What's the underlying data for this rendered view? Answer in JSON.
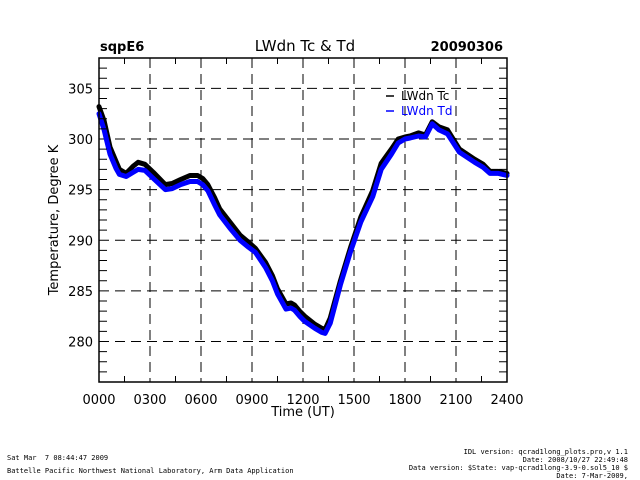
{
  "header": {
    "site": "sqpE6",
    "title": "LWdn Tc & Td",
    "date": "20090306"
  },
  "chart_data": {
    "type": "line",
    "title": "LWdn Tc & Td",
    "xlabel": "Time (UT)",
    "ylabel": "Temperature, Degree K",
    "xlim": [
      0,
      24
    ],
    "ylim": [
      276,
      308
    ],
    "x_ticks": [
      0,
      3,
      6,
      9,
      12,
      15,
      18,
      21,
      24
    ],
    "x_tick_labels": [
      "0000",
      "0300",
      "0600",
      "0900",
      "1200",
      "1500",
      "1800",
      "2100",
      "2400"
    ],
    "y_ticks": [
      280,
      285,
      290,
      295,
      300,
      305
    ],
    "y_tick_labels": [
      "280",
      "285",
      "290",
      "295",
      "300",
      "305"
    ],
    "grid": true,
    "legend_position": "top-right",
    "series": [
      {
        "name": "LWdn Tc",
        "color": "#000000",
        "x": [
          0,
          0.3,
          0.65,
          1.0,
          1.2,
          1.6,
          2.0,
          2.3,
          2.7,
          3.2,
          3.9,
          4.3,
          4.8,
          5.35,
          5.8,
          6.1,
          6.4,
          6.8,
          7.1,
          7.7,
          8.3,
          8.8,
          9.2,
          9.8,
          10.2,
          10.5,
          11.0,
          11.3,
          11.5,
          11.8,
          12.1,
          12.7,
          13.1,
          13.3,
          13.6,
          14.2,
          14.8,
          15.4,
          16.1,
          16.6,
          17.2,
          17.6,
          18.0,
          18.3,
          18.8,
          19.2,
          19.6,
          20.0,
          20.5,
          21.2,
          22.1,
          22.6,
          23.0,
          23.5,
          24.0
        ],
        "y": [
          303.2,
          301.8,
          299.2,
          297.8,
          297.0,
          296.6,
          297.3,
          297.7,
          297.5,
          296.7,
          295.5,
          295.6,
          296.0,
          296.4,
          296.4,
          296.1,
          295.5,
          294.2,
          293.1,
          291.8,
          290.5,
          289.8,
          289.2,
          287.8,
          286.5,
          285.2,
          283.7,
          283.8,
          283.6,
          283.0,
          282.5,
          281.7,
          281.3,
          281.2,
          282.3,
          286.0,
          289.3,
          292.3,
          294.9,
          297.6,
          299.0,
          300.0,
          300.2,
          300.3,
          300.6,
          300.4,
          301.7,
          301.2,
          300.9,
          299.0,
          298.0,
          297.5,
          296.8,
          296.8,
          296.6
        ]
      },
      {
        "name": "LWdn Td",
        "color": "#0000ff",
        "x": [
          0,
          0.3,
          0.65,
          1.0,
          1.2,
          1.6,
          2.0,
          2.3,
          2.7,
          3.2,
          3.9,
          4.3,
          4.8,
          5.35,
          5.8,
          6.1,
          6.4,
          6.8,
          7.1,
          7.7,
          8.3,
          8.8,
          9.2,
          9.8,
          10.2,
          10.5,
          11.0,
          11.3,
          11.5,
          11.8,
          12.1,
          12.7,
          13.1,
          13.3,
          13.6,
          14.2,
          14.8,
          15.4,
          16.1,
          16.6,
          17.2,
          17.6,
          18.0,
          18.3,
          18.8,
          19.2,
          19.6,
          20.0,
          20.5,
          21.2,
          22.1,
          22.6,
          23.0,
          23.5,
          24.0
        ],
        "y": [
          302.5,
          300.9,
          298.5,
          297.1,
          296.5,
          296.3,
          296.7,
          297.0,
          296.9,
          296.1,
          295.0,
          295.1,
          295.5,
          295.8,
          295.8,
          295.5,
          294.9,
          293.5,
          292.5,
          291.2,
          290.0,
          289.3,
          288.8,
          287.3,
          286.0,
          284.7,
          283.2,
          283.3,
          283.1,
          282.5,
          282.0,
          281.3,
          280.9,
          280.8,
          281.8,
          285.6,
          288.9,
          291.8,
          294.3,
          297.0,
          298.5,
          299.6,
          300.0,
          300.1,
          300.3,
          300.2,
          301.5,
          300.9,
          300.5,
          298.7,
          297.7,
          297.2,
          296.6,
          296.6,
          296.4
        ]
      }
    ]
  },
  "footer": {
    "timestamp": "Sat Mar  7 08:44:47 2009",
    "organization": "Battelle Pacific Northwest National Laboratory, Arm Data Application",
    "idl_version": "IDL version: qcrad1long_plots.pro,v 1.1",
    "idl_date": "Date: 2008/10/27 22:49:48",
    "data_version": "Data version: $State: vap-qcrad1long-3.9-0.sol5_10 $",
    "data_date": "Date: 7-Mar-2009,"
  }
}
